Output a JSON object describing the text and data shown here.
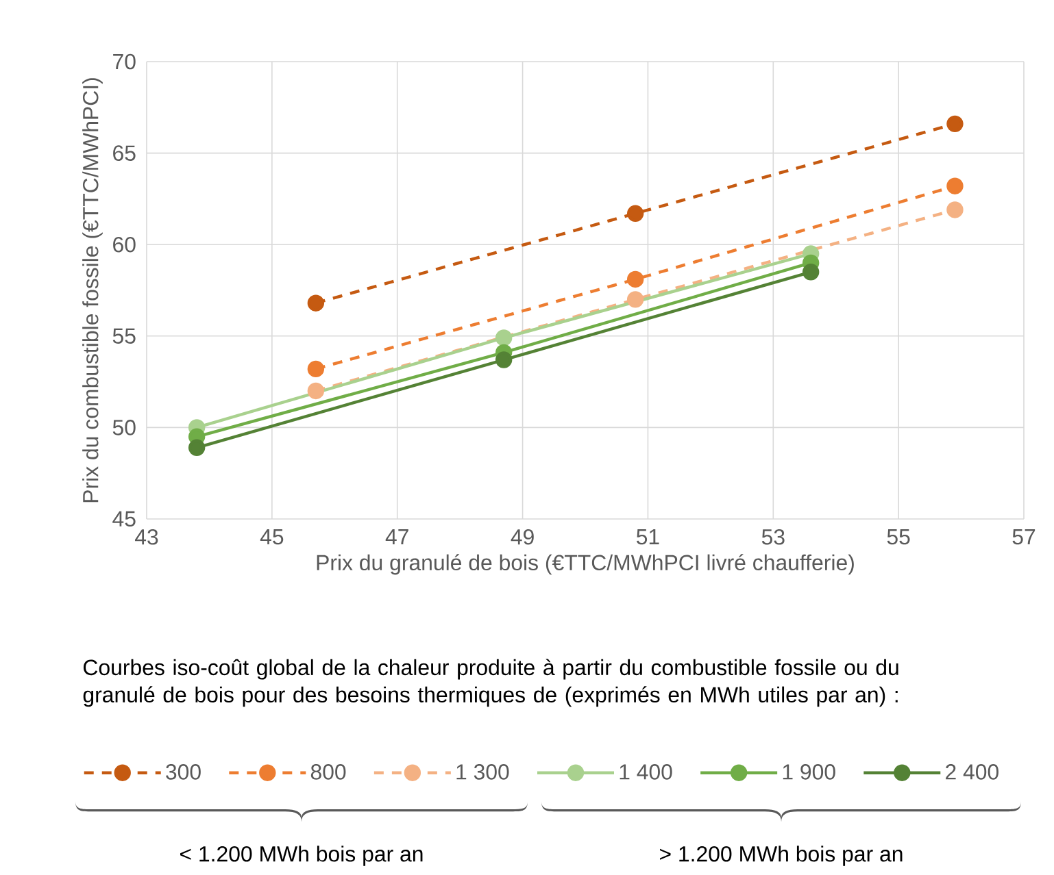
{
  "chart_data": {
    "type": "line",
    "xlabel": "Prix du granulé de bois (€TTC/MWhPCI livré chaufferie)",
    "ylabel": "Prix du combustible fossile (€TTC/MWhPCI)",
    "legend_title": "Courbes iso-coût global de la chaleur produite à partir du combustible fossile ou du granulé de bois pour des besoins thermiques de (exprimés en MWh utiles par an) :",
    "series": [
      {
        "name": "300",
        "color": "#c55a11",
        "line_style": "dashed",
        "x": [
          45.7,
          50.8,
          55.9
        ],
        "values": [
          56.8,
          61.7,
          66.6
        ]
      },
      {
        "name": "800",
        "color": "#ed7d31",
        "line_style": "dashed",
        "x": [
          45.7,
          50.8,
          55.9
        ],
        "values": [
          53.2,
          58.1,
          63.2
        ]
      },
      {
        "name": "1 300",
        "color": "#f4b183",
        "line_style": "dashed",
        "x": [
          45.7,
          50.8,
          55.9
        ],
        "values": [
          52.0,
          57.0,
          61.9
        ]
      },
      {
        "name": "1 400",
        "color": "#a9d18e",
        "line_style": "solid",
        "x": [
          43.8,
          48.7,
          53.6
        ],
        "values": [
          50.0,
          54.9,
          59.5
        ]
      },
      {
        "name": "1 900",
        "color": "#70ad47",
        "line_style": "solid",
        "x": [
          43.8,
          48.7,
          53.6
        ],
        "values": [
          49.5,
          54.1,
          59.0
        ]
      },
      {
        "name": "2 400",
        "color": "#548235",
        "line_style": "solid",
        "x": [
          43.8,
          48.7,
          53.6
        ],
        "values": [
          48.9,
          53.7,
          58.5
        ]
      }
    ],
    "xlim": [
      43,
      57
    ],
    "xticks": [
      43,
      45,
      47,
      49,
      51,
      53,
      55,
      57
    ],
    "ylim": [
      45,
      70
    ],
    "yticks": [
      45,
      50,
      55,
      60,
      65,
      70
    ],
    "grid": true,
    "legend": "bottom",
    "marker": "circle",
    "annotations": [
      "< 1.200 MWh bois par an",
      "> 1.200 MWh bois par an"
    ]
  }
}
